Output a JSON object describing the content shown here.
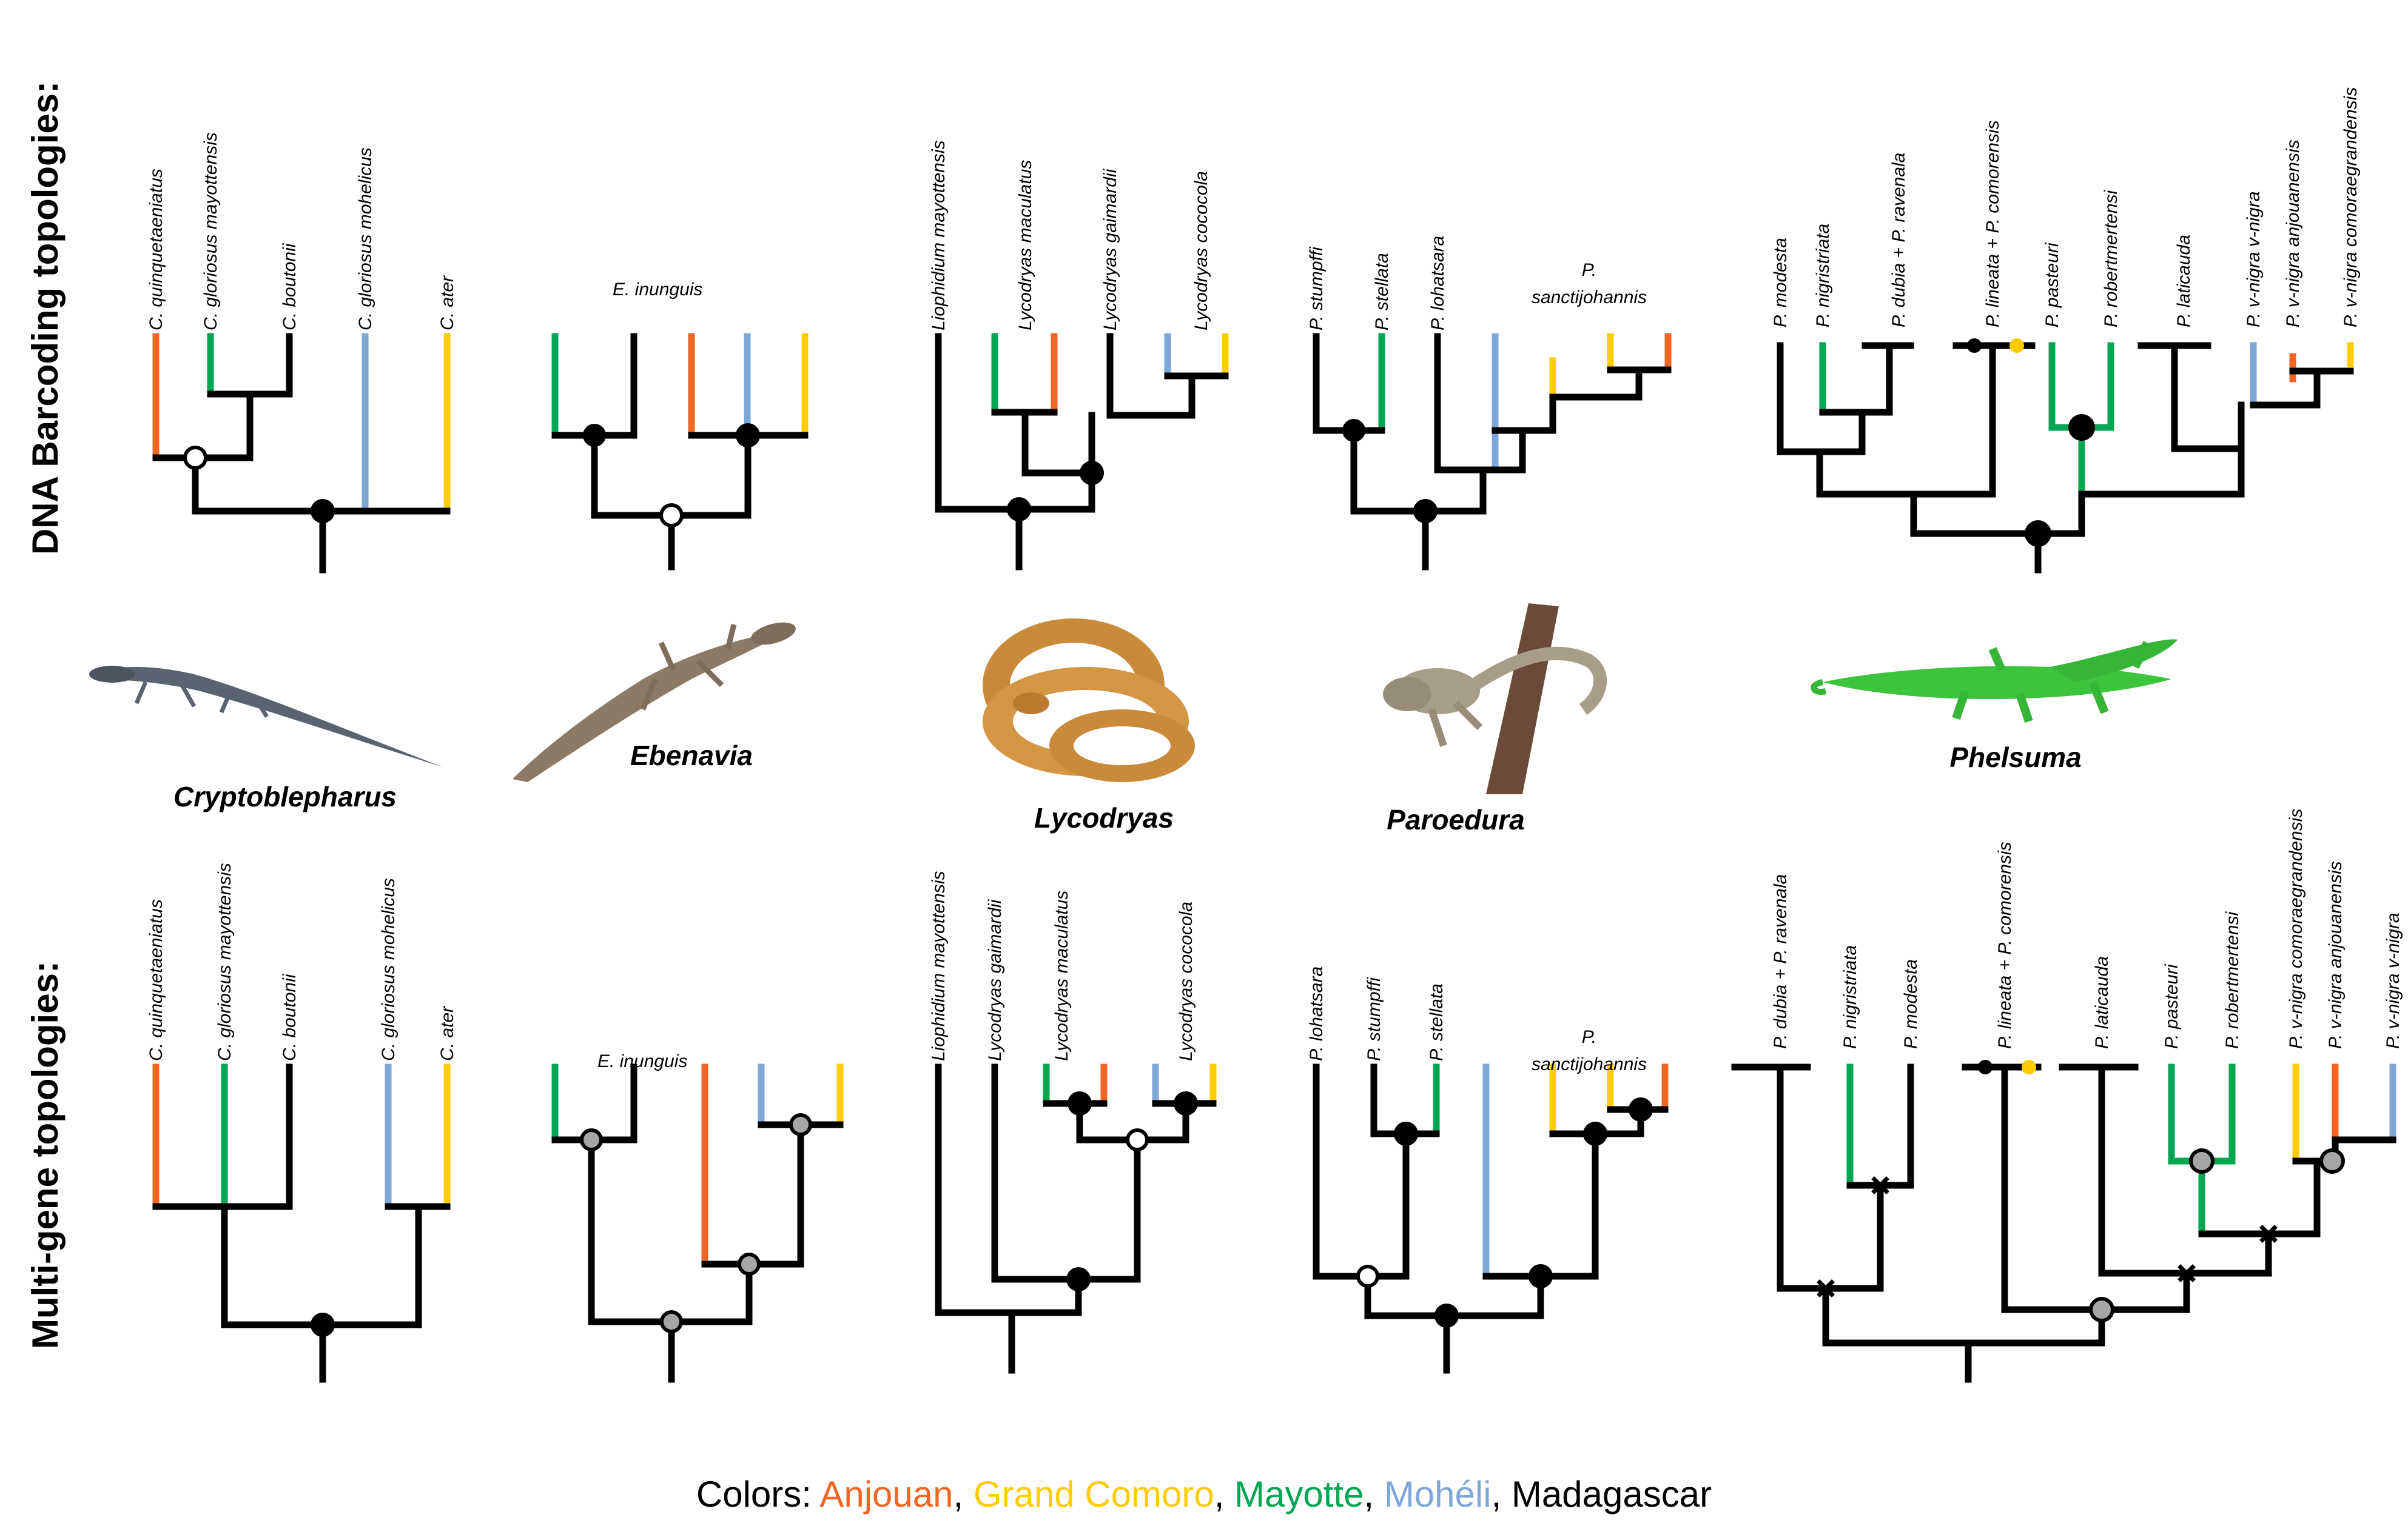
{
  "row_labels": {
    "top": "DNA Barcoding topologies:",
    "bottom": "Multi-gene topologies:"
  },
  "genera": [
    "Cryptoblepharus",
    "Ebenavia",
    "Lycodryas",
    "Paroedura",
    "Phelsuma"
  ],
  "colors": {
    "Anjouan": "#f26522",
    "Grand Comoro": "#ffcc00",
    "Mayotte": "#00a651",
    "Moheli": "#7ea7d8",
    "Madagascar": "#000000",
    "support_gray": "#a6a6a6"
  },
  "top_tips": {
    "cryptoblepharus": [
      "C. quinquetaeniatus",
      "C. gloriosus mayottensis",
      "C. boutonii",
      "C. gloriosus mohelicus",
      "C. ater"
    ],
    "ebenavia": [
      "E. inunguis"
    ],
    "lycodryas": [
      "Liophidium mayottensis",
      "Lycodryas maculatus",
      "Lycodryas gaimardii",
      "Lycodryas cococola"
    ],
    "paroedura": [
      "P. stumpffi",
      "P. stellata",
      "P. lohatsara",
      "P.",
      "sanctijohannis"
    ],
    "phelsuma": [
      "P. modesta",
      "P. nigristriata",
      "P. dubia + P. ravenala",
      "P. lineata + P. comorensis",
      "P. pasteuri",
      "P. robertmertensi",
      "P. laticauda",
      "P. v-nigra v-nigra",
      "P. v-nigra anjouanensis",
      "P. v-nigra comoraegrandensis"
    ]
  },
  "bottom_tips": {
    "cryptoblepharus": [
      "C. quinquetaeniatus",
      "C. gloriosus mayottensis",
      "C. boutonii",
      "C. gloriosus mohelicus",
      "C. ater"
    ],
    "ebenavia": [
      "E. inunguis"
    ],
    "lycodryas": [
      "Liophidium mayottensis",
      "Lycodryas gaimardii",
      "Lycodryas maculatus",
      "Lycodryas cococola"
    ],
    "paroedura": [
      "P. lohatsara",
      "P. stumpffi",
      "P. stellata",
      "P.",
      "sanctijohannis"
    ],
    "phelsuma": [
      "P. dubia + P. ravenala",
      "P. nigristriata",
      "P. modesta",
      "P. lineata + P. comorensis",
      "P. laticauda",
      "P. pasteuri",
      "P. robertmertensi",
      "P. v-nigra comoraegrandensis",
      "P. v-nigra anjouanensis",
      "P. v-nigra v-nigra"
    ]
  },
  "legend": {
    "prefix": "Colors: ",
    "items": [
      {
        "label": "Anjouan",
        "color": "#f26522"
      },
      {
        "label": "Grand Comoro",
        "color": "#ffcc00"
      },
      {
        "label": "Mayotte",
        "color": "#00a651"
      },
      {
        "label": "Mohéli",
        "color": "#7ea7d8"
      },
      {
        "label": "Madagascar",
        "color": "#000000"
      }
    ],
    "separator": ", "
  }
}
